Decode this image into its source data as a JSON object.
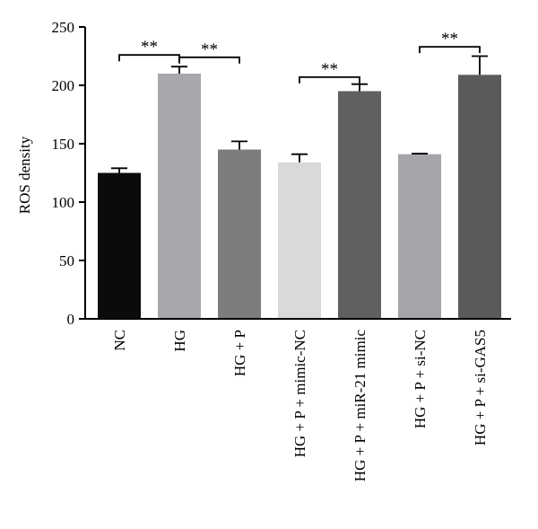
{
  "chart_data": {
    "type": "bar",
    "categories": [
      "NC",
      "HG",
      "HG + P",
      "HG + P + mimic-NC",
      "HG + P + miR-21 mimic",
      "HG + P + si-NC",
      "HG + P + si-GAS5"
    ],
    "values": [
      125,
      210,
      145,
      134,
      195,
      141,
      209
    ],
    "errors": [
      4,
      6,
      7,
      7,
      6,
      0.5,
      16
    ],
    "colors": [
      "#0b0b0d",
      "#a7a7ac",
      "#7e7c7f",
      "#d9d9d9",
      "#606060",
      "#a5a4a9",
      "#5a5a5a"
    ],
    "ylabel": "ROS density",
    "xlabel": "",
    "ylim": [
      0,
      250
    ],
    "yticks": [
      0,
      50,
      100,
      150,
      200,
      250
    ],
    "grid": false,
    "significance": [
      {
        "from": 0,
        "to": 1,
        "label": "**",
        "level": 226
      },
      {
        "from": 1,
        "to": 2,
        "label": "**",
        "level": 224
      },
      {
        "from": 3,
        "to": 4,
        "label": "**",
        "level": 207
      },
      {
        "from": 5,
        "to": 6,
        "label": "**",
        "level": 233
      }
    ]
  }
}
